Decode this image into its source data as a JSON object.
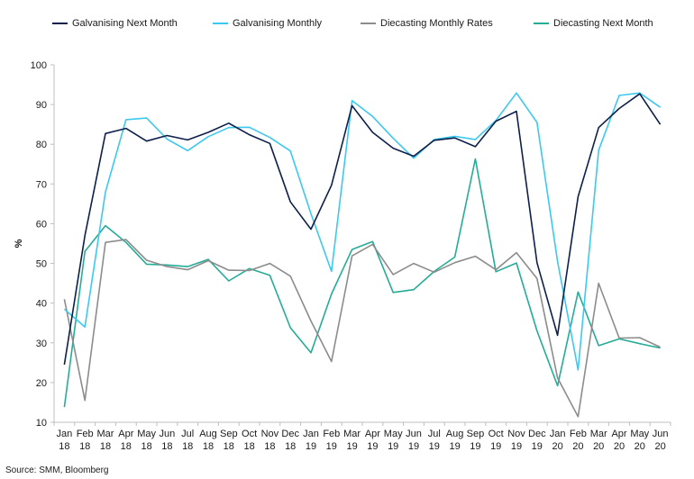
{
  "chart_data": {
    "type": "line",
    "title": "",
    "xlabel": "",
    "ylabel": "%",
    "ylim": [
      10,
      100
    ],
    "yticks": [
      10,
      20,
      30,
      40,
      50,
      60,
      70,
      80,
      90,
      100
    ],
    "grid": false,
    "legend_position": "top",
    "categories": [
      "Jan 18",
      "Feb 18",
      "Mar 18",
      "Apr 18",
      "May 18",
      "Jun 18",
      "Jul 18",
      "Aug 18",
      "Sep 18",
      "Oct 18",
      "Nov 18",
      "Dec 18",
      "Jan 19",
      "Feb 19",
      "Mar 19",
      "Apr 19",
      "May 19",
      "Jun 19",
      "Jul 19",
      "Aug 19",
      "Sep 19",
      "Oct 19",
      "Nov 19",
      "Dec 19",
      "Jan 20",
      "Feb 20",
      "Mar 20",
      "Apr 20",
      "May 20",
      "Jun 20"
    ],
    "series": [
      {
        "name": "Galvanising Next Month",
        "color": "#0d1f4a",
        "values": [
          24.5,
          57,
          82.7,
          84,
          80.8,
          82.2,
          81.1,
          83,
          85.3,
          82.4,
          80.2,
          65.5,
          58.6,
          69.7,
          89.7,
          83,
          79,
          77,
          81,
          81.6,
          79.4,
          85.8,
          88.3,
          50.2,
          31.9,
          66.8,
          84.2,
          89,
          92.7,
          85
        ]
      },
      {
        "name": "Galvanising Monthly",
        "color": "#3dc8ee",
        "values": [
          38.5,
          34,
          68,
          86.2,
          86.6,
          81.3,
          78.4,
          81.9,
          84.2,
          84.3,
          81.7,
          78.3,
          62.5,
          48,
          91,
          87,
          81.5,
          76.5,
          81.2,
          82,
          81.2,
          86,
          92.9,
          85.5,
          50.5,
          23.2,
          78.5,
          92.3,
          92.9,
          89.3
        ]
      },
      {
        "name": "Diecasting Monthly Rates",
        "color": "#8c8c8c",
        "values": [
          41,
          15.5,
          55.3,
          56,
          50.8,
          49.2,
          48.4,
          50.7,
          48.3,
          48.2,
          50,
          46.8,
          35.5,
          25.3,
          51.9,
          54.8,
          47.2,
          50,
          47.8,
          50.2,
          51.8,
          48.4,
          52.7,
          46.2,
          21.2,
          11.4,
          45,
          31.2,
          31.3,
          28.9
        ]
      },
      {
        "name": "Diecasting Next Month",
        "color": "#25ac96",
        "values": [
          13.8,
          53,
          59.5,
          55.3,
          49.8,
          49.6,
          49.2,
          51,
          45.6,
          48.7,
          47,
          33.8,
          27.5,
          42.3,
          53.5,
          55.5,
          42.7,
          43.4,
          48,
          51.6,
          76.3,
          47.9,
          50.1,
          33,
          19.2,
          42.8,
          29.3,
          31,
          29.8,
          28.7
        ]
      }
    ],
    "source": "Source: SMM, Bloomberg"
  }
}
